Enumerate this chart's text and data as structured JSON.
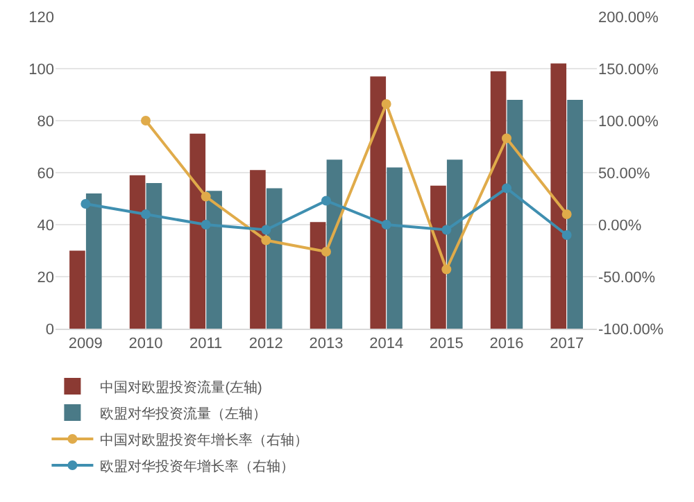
{
  "chart_data": {
    "type": "bar",
    "categories": [
      "2009",
      "2010",
      "2011",
      "2012",
      "2013",
      "2014",
      "2015",
      "2016",
      "2017"
    ],
    "series": [
      {
        "name": "中国对欧盟投资流量(左轴)",
        "color": "#8b3a33",
        "values": [
          30,
          59,
          75,
          61,
          41,
          97,
          55,
          99,
          102
        ]
      },
      {
        "name": "欧盟对华投资流量（左轴）",
        "color": "#4a7a87",
        "values": [
          52,
          56,
          53,
          54,
          65,
          62,
          65,
          88,
          88
        ]
      },
      {
        "name": "中国对欧盟投资年增长率（右轴）",
        "type": "line",
        "axis": "y2",
        "marker": "circle",
        "color": "#e0ab4a",
        "values": [
          null,
          100,
          27,
          -15,
          -26,
          116,
          -43,
          83,
          10
        ]
      },
      {
        "name": "欧盟对华投资年增长率（右轴）",
        "type": "line",
        "axis": "y2",
        "marker": "circle",
        "color": "#3f8fb0",
        "values": [
          20,
          10,
          0,
          -5,
          23,
          0,
          -5,
          35,
          -10
        ]
      }
    ],
    "ylim": [
      0,
      120
    ],
    "yticks": [
      0,
      20,
      40,
      60,
      80,
      100,
      120
    ],
    "y2lim": [
      -100,
      200
    ],
    "y2ticks": [
      {
        "value": -100,
        "label": "-100.00%"
      },
      {
        "value": -50,
        "label": "-50.00%"
      },
      {
        "value": 0,
        "label": "0.00%"
      },
      {
        "value": 50,
        "label": "50.00%"
      },
      {
        "value": 100,
        "label": "100.00%"
      },
      {
        "value": 150,
        "label": "150.00%"
      },
      {
        "value": 200,
        "label": "200.00%"
      }
    ],
    "grid": "y",
    "legend": "bottom"
  }
}
